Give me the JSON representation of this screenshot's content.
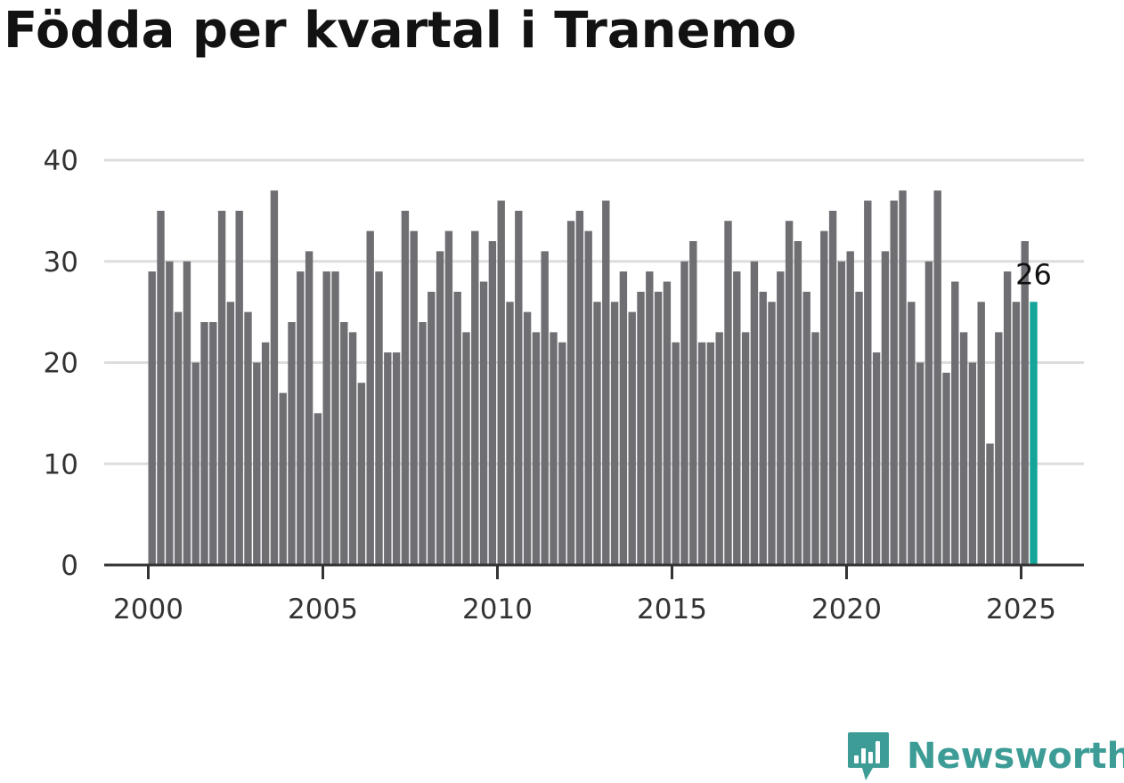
{
  "title": "Födda per kvartal i Tranemo",
  "brand": {
    "name": "Newsworthy",
    "icon": "newsworthy-chart-bubble-icon",
    "color": "#3d9d96"
  },
  "colors": {
    "bar": "#6f6e73",
    "highlight": "#14a49a",
    "grid": "#dddddd",
    "axis": "#333333"
  },
  "chart_data": {
    "type": "bar",
    "x_start": "2000 Q1",
    "frequency": "quarterly",
    "values": [
      29,
      35,
      30,
      25,
      30,
      20,
      24,
      24,
      35,
      26,
      35,
      25,
      20,
      22,
      37,
      17,
      24,
      29,
      31,
      15,
      29,
      29,
      24,
      23,
      18,
      33,
      29,
      21,
      21,
      35,
      33,
      24,
      27,
      31,
      33,
      27,
      23,
      33,
      28,
      32,
      36,
      26,
      35,
      25,
      23,
      31,
      23,
      22,
      34,
      35,
      33,
      26,
      36,
      26,
      29,
      25,
      27,
      29,
      27,
      28,
      22,
      30,
      32,
      22,
      22,
      23,
      34,
      29,
      23,
      30,
      27,
      26,
      29,
      34,
      32,
      27,
      23,
      33,
      35,
      30,
      31,
      27,
      36,
      21,
      31,
      36,
      37,
      26,
      20,
      30,
      37,
      19,
      28,
      23,
      20,
      26,
      12,
      23,
      29,
      26,
      32,
      26
    ],
    "highlight_index": 101,
    "highlight_label": "26",
    "y_ticks": [
      "0",
      "10",
      "20",
      "30",
      "40"
    ],
    "x_ticks": [
      "2000",
      "2005",
      "2010",
      "2015",
      "2020",
      "2025"
    ],
    "ylim": [
      0,
      40
    ],
    "grid": true
  }
}
